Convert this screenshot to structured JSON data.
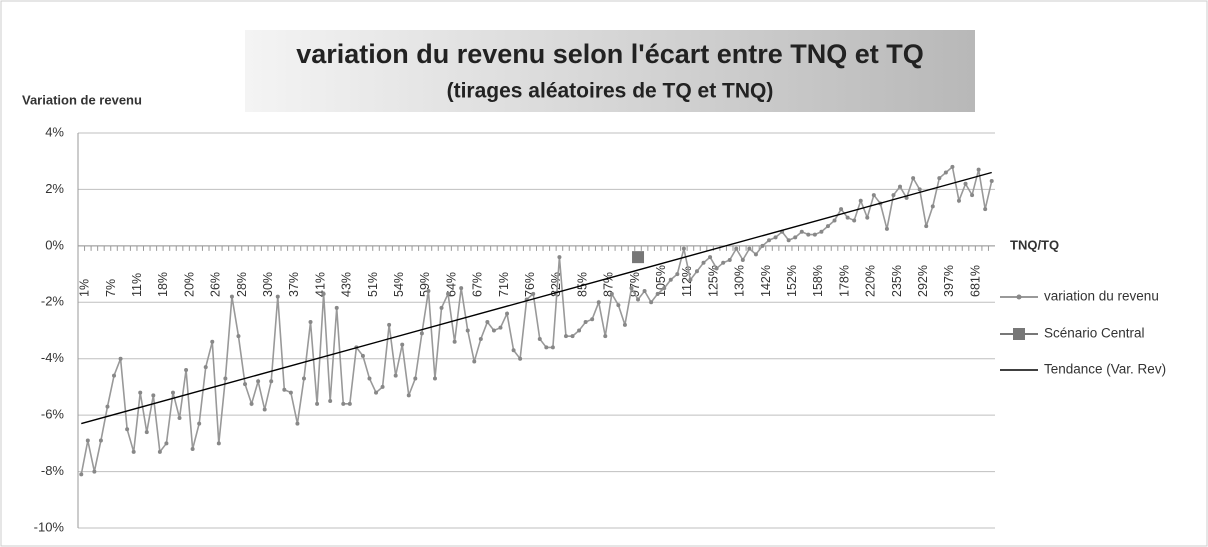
{
  "chart_data": {
    "type": "line",
    "title": "variation du revenu selon l'écart entre TNQ et TQ",
    "subtitle": "(tirages aléatoires de TQ et TNQ)",
    "y_label": "Variation de revenu",
    "x_label": "TNQ/TQ",
    "categories": [
      "1%",
      null,
      null,
      null,
      "7%",
      null,
      null,
      null,
      "11%",
      null,
      null,
      null,
      "18%",
      null,
      null,
      null,
      "20%",
      null,
      null,
      null,
      "26%",
      null,
      null,
      null,
      "28%",
      null,
      null,
      null,
      "30%",
      null,
      null,
      null,
      "37%",
      null,
      null,
      null,
      "41%",
      null,
      null,
      null,
      "43%",
      null,
      null,
      null,
      "51%",
      null,
      null,
      null,
      "54%",
      null,
      null,
      null,
      "59%",
      null,
      null,
      null,
      "64%",
      null,
      null,
      null,
      "67%",
      null,
      null,
      null,
      "71%",
      null,
      null,
      null,
      "76%",
      null,
      null,
      null,
      "82%",
      null,
      null,
      null,
      "85%",
      null,
      null,
      null,
      "87%",
      null,
      null,
      null,
      "97%",
      null,
      null,
      null,
      "105%",
      null,
      null,
      null,
      "112%",
      null,
      null,
      null,
      "125%",
      null,
      null,
      null,
      "130%",
      null,
      null,
      null,
      "142%",
      null,
      null,
      null,
      "152%",
      null,
      null,
      null,
      "158%",
      null,
      null,
      null,
      "178%",
      null,
      null,
      null,
      "220%",
      null,
      null,
      null,
      "235%",
      null,
      null,
      null,
      "292%",
      null,
      null,
      null,
      "397%",
      null,
      null,
      null,
      "681%",
      null,
      null,
      null
    ],
    "series": [
      {
        "name": "variation du revenu",
        "color": "#999999",
        "marker": "dot",
        "values": [
          -8.1,
          -6.9,
          -8.0,
          -6.9,
          -5.7,
          -4.6,
          -4.0,
          -6.5,
          -7.3,
          -5.2,
          -6.6,
          -5.3,
          -7.3,
          -7.0,
          -5.2,
          -6.1,
          -4.4,
          -7.2,
          -6.3,
          -4.3,
          -3.4,
          -7.0,
          -4.7,
          -1.8,
          -3.2,
          -4.9,
          -5.6,
          -4.8,
          -5.8,
          -4.8,
          -1.8,
          -5.1,
          -5.2,
          -6.3,
          -4.7,
          -2.7,
          -5.6,
          -1.7,
          -5.5,
          -2.2,
          -5.6,
          -5.6,
          -3.6,
          -3.9,
          -4.7,
          -5.2,
          -5.0,
          -2.8,
          -4.6,
          -3.5,
          -5.3,
          -4.7,
          -3.1,
          -1.6,
          -4.7,
          -2.2,
          -1.7,
          -3.4,
          -1.5,
          -3.0,
          -4.1,
          -3.3,
          -2.7,
          -3.0,
          -2.9,
          -2.4,
          -3.7,
          -4.0,
          -1.9,
          -1.7,
          -3.3,
          -3.6,
          -3.6,
          -0.4,
          -3.2,
          -3.2,
          -3.0,
          -2.7,
          -2.6,
          -2.0,
          -3.2,
          -1.7,
          -2.1,
          -2.8,
          -1.5,
          -1.9,
          -1.6,
          -2.0,
          -1.7,
          -1.5,
          -1.2,
          -1.0,
          -0.1,
          -1.2,
          -0.9,
          -0.6,
          -0.4,
          -0.8,
          -0.6,
          -0.5,
          -0.1,
          -0.5,
          -0.1,
          -0.3,
          0.0,
          0.2,
          0.3,
          0.5,
          0.2,
          0.3,
          0.5,
          0.4,
          0.4,
          0.5,
          0.7,
          0.9,
          1.3,
          1.0,
          0.9,
          1.6,
          1.0,
          1.8,
          1.5,
          0.6,
          1.8,
          2.1,
          1.7,
          2.4,
          2.0,
          0.7,
          1.4,
          2.4,
          2.6,
          2.8,
          1.6,
          2.2,
          1.8,
          2.7,
          1.3,
          2.3
        ]
      },
      {
        "name": "Scénario Central",
        "color": "#777777",
        "marker": "square",
        "values": [
          null,
          null,
          null,
          null,
          null,
          null,
          null,
          null,
          null,
          null,
          null,
          null,
          null,
          null,
          null,
          null,
          null,
          null,
          null,
          null,
          null,
          null,
          null,
          null,
          null,
          null,
          null,
          null,
          null,
          null,
          null,
          null,
          null,
          null,
          null,
          null,
          null,
          null,
          null,
          null,
          null,
          null,
          null,
          null,
          null,
          null,
          null,
          null,
          null,
          null,
          null,
          null,
          null,
          null,
          null,
          null,
          null,
          null,
          null,
          null,
          null,
          null,
          null,
          null,
          null,
          null,
          null,
          null,
          null,
          null,
          null,
          null,
          null,
          null,
          null,
          null,
          null,
          null,
          null,
          null,
          null,
          null,
          null,
          null,
          null,
          -0.4,
          null,
          null,
          null,
          null,
          null,
          null,
          null,
          null,
          null,
          null,
          null,
          null,
          null,
          null,
          null,
          null,
          null,
          null,
          null,
          null,
          null,
          null,
          null,
          null,
          null,
          null,
          null,
          null,
          null,
          null,
          null,
          null,
          null,
          null,
          null,
          null,
          null,
          null,
          null,
          null,
          null,
          null,
          null,
          null,
          null,
          null,
          null,
          null,
          null,
          null,
          null,
          null,
          null,
          null
        ]
      }
    ],
    "trendline": {
      "name": "Tendance (Var. Rev)",
      "color": "#000000",
      "start": -6.3,
      "end": 2.6
    },
    "ylim": [
      -10,
      4
    ],
    "yticks": [
      {
        "value": -10,
        "label": "-10%"
      },
      {
        "value": -8,
        "label": "-8%"
      },
      {
        "value": -6,
        "label": "-6%"
      },
      {
        "value": -4,
        "label": "-4%"
      },
      {
        "value": -2,
        "label": "-2%"
      },
      {
        "value": 0,
        "label": "0%"
      },
      {
        "value": 2,
        "label": "2%"
      },
      {
        "value": 4,
        "label": "4%"
      }
    ],
    "grid": true,
    "legend": "right"
  }
}
